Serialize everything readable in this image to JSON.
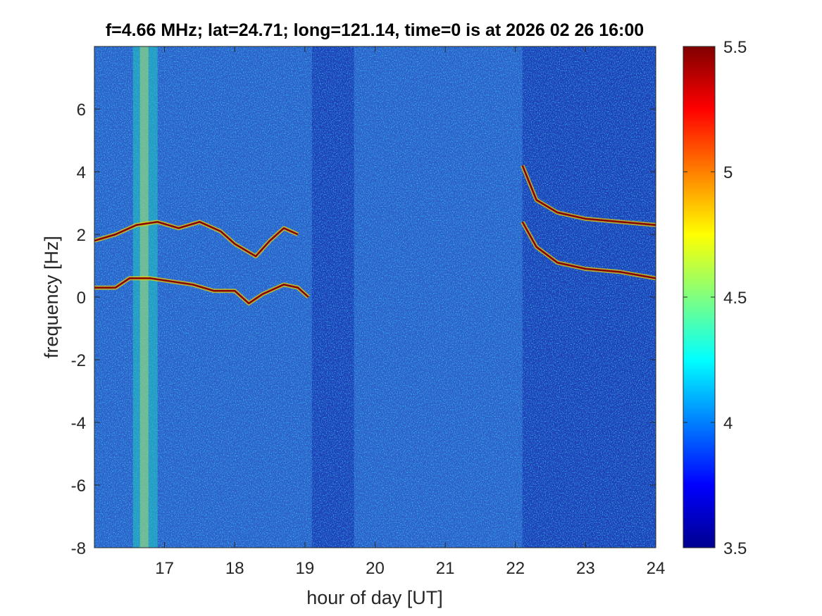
{
  "chart_data": {
    "type": "heatmap",
    "title": "f=4.66 MHz;  lat=24.71; long=121.14, time=0 is at 2026 02 26 16:00",
    "xlabel": "hour of day [UT]",
    "ylabel": "frequency [Hz]",
    "xlim": [
      16,
      24
    ],
    "ylim": [
      -8,
      8
    ],
    "xticks": [
      17,
      18,
      19,
      20,
      21,
      22,
      23,
      24
    ],
    "xtick_labels": [
      "17",
      "18",
      "19",
      "20",
      "21",
      "22",
      "23",
      "24"
    ],
    "yticks": [
      -8,
      -6,
      -4,
      -2,
      0,
      2,
      4,
      6
    ],
    "ytick_labels": [
      "-8",
      "-6",
      "-4",
      "-2",
      "0",
      "2",
      "4",
      "6"
    ],
    "colorbar": {
      "colormap": "jet",
      "range": [
        3.5,
        5.5
      ],
      "ticks": [
        3.5,
        4,
        4.5,
        5,
        5.5
      ],
      "tick_labels": [
        "3.5",
        "4",
        "4.5",
        "5",
        "5.5"
      ]
    },
    "grid": false,
    "features": {
      "bright_vertical_band": [
        16.55,
        16.9
      ],
      "enhanced_noise_spans": [
        [
          16.0,
          19.1
        ],
        [
          19.7,
          22.1
        ]
      ],
      "traces": [
        {
          "x": [
            16.0,
            16.3,
            16.6,
            16.9,
            17.2,
            17.5,
            17.8,
            18.0,
            18.3,
            18.5,
            18.7,
            18.9
          ],
          "y": [
            1.8,
            2.0,
            2.3,
            2.4,
            2.2,
            2.4,
            2.1,
            1.7,
            1.3,
            1.8,
            2.2,
            2.0
          ]
        },
        {
          "x": [
            16.0,
            16.3,
            16.5,
            16.8,
            17.1,
            17.4,
            17.7,
            18.0,
            18.2,
            18.4,
            18.7,
            18.9,
            19.05
          ],
          "y": [
            0.3,
            0.3,
            0.6,
            0.6,
            0.5,
            0.4,
            0.2,
            0.2,
            -0.2,
            0.1,
            0.4,
            0.3,
            0.0
          ]
        },
        {
          "x": [
            22.1,
            22.3,
            22.6,
            23.0,
            23.5,
            24.0
          ],
          "y": [
            4.2,
            3.1,
            2.7,
            2.5,
            2.4,
            2.3
          ]
        },
        {
          "x": [
            22.1,
            22.3,
            22.6,
            23.0,
            23.5,
            24.0
          ],
          "y": [
            2.4,
            1.6,
            1.1,
            0.9,
            0.8,
            0.6
          ]
        }
      ]
    }
  },
  "colors": {
    "background": "#1e3fb8",
    "trace_core": "#8a0000",
    "trace_halo": "#e8d000",
    "band": "#22c8c0",
    "axis": "#262626"
  }
}
